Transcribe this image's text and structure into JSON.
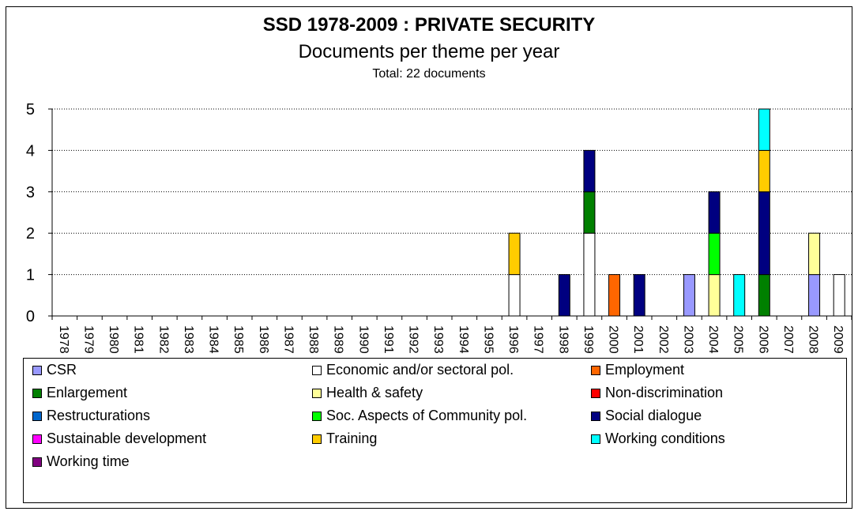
{
  "chart_data": {
    "type": "bar",
    "stacked": true,
    "title": "SSD 1978-2009 :  PRIVATE SECURITY",
    "subtitle": "Documents per theme per year",
    "note": "Total: 22 documents",
    "categories": [
      "1978",
      "1979",
      "1980",
      "1981",
      "1982",
      "1983",
      "1984",
      "1985",
      "1986",
      "1987",
      "1988",
      "1989",
      "1990",
      "1991",
      "1992",
      "1993",
      "1994",
      "1995",
      "1996",
      "1997",
      "1998",
      "1999",
      "2000",
      "2001",
      "2002",
      "2003",
      "2004",
      "2005",
      "2006",
      "2007",
      "2008",
      "2009"
    ],
    "ylim": [
      0,
      5
    ],
    "yticks": [
      "0",
      "1",
      "2",
      "3",
      "4",
      "5"
    ],
    "grid": true,
    "legend_position": "bottom",
    "series": [
      {
        "name": "CSR",
        "color": "#9999ff",
        "values": [
          0,
          0,
          0,
          0,
          0,
          0,
          0,
          0,
          0,
          0,
          0,
          0,
          0,
          0,
          0,
          0,
          0,
          0,
          0,
          0,
          0,
          0,
          0,
          0,
          0,
          1,
          0,
          0,
          0,
          0,
          1,
          0
        ]
      },
      {
        "name": "Economic and/or sectoral pol.",
        "color": "#ffffff",
        "values": [
          0,
          0,
          0,
          0,
          0,
          0,
          0,
          0,
          0,
          0,
          0,
          0,
          0,
          0,
          0,
          0,
          0,
          0,
          1,
          0,
          0,
          2,
          0,
          0,
          0,
          0,
          0,
          0,
          0,
          0,
          0,
          1
        ]
      },
      {
        "name": "Employment",
        "color": "#ff6600",
        "values": [
          0,
          0,
          0,
          0,
          0,
          0,
          0,
          0,
          0,
          0,
          0,
          0,
          0,
          0,
          0,
          0,
          0,
          0,
          0,
          0,
          0,
          0,
          1,
          0,
          0,
          0,
          0,
          0,
          0,
          0,
          0,
          0
        ]
      },
      {
        "name": "Enlargement",
        "color": "#008000",
        "values": [
          0,
          0,
          0,
          0,
          0,
          0,
          0,
          0,
          0,
          0,
          0,
          0,
          0,
          0,
          0,
          0,
          0,
          0,
          0,
          0,
          0,
          1,
          0,
          0,
          0,
          0,
          0,
          0,
          1,
          0,
          0,
          0
        ]
      },
      {
        "name": "Health & safety",
        "color": "#ffff99",
        "values": [
          0,
          0,
          0,
          0,
          0,
          0,
          0,
          0,
          0,
          0,
          0,
          0,
          0,
          0,
          0,
          0,
          0,
          0,
          0,
          0,
          0,
          0,
          0,
          0,
          0,
          0,
          1,
          0,
          0,
          0,
          1,
          0
        ]
      },
      {
        "name": "Non-discrimination",
        "color": "#ff0000",
        "values": [
          0,
          0,
          0,
          0,
          0,
          0,
          0,
          0,
          0,
          0,
          0,
          0,
          0,
          0,
          0,
          0,
          0,
          0,
          0,
          0,
          0,
          0,
          0,
          0,
          0,
          0,
          0,
          0,
          0,
          0,
          0,
          0
        ]
      },
      {
        "name": "Restructurations",
        "color": "#0066cc",
        "values": [
          0,
          0,
          0,
          0,
          0,
          0,
          0,
          0,
          0,
          0,
          0,
          0,
          0,
          0,
          0,
          0,
          0,
          0,
          0,
          0,
          0,
          0,
          0,
          0,
          0,
          0,
          0,
          0,
          0,
          0,
          0,
          0
        ]
      },
      {
        "name": "Soc. Aspects of Community pol.",
        "color": "#00ff00",
        "values": [
          0,
          0,
          0,
          0,
          0,
          0,
          0,
          0,
          0,
          0,
          0,
          0,
          0,
          0,
          0,
          0,
          0,
          0,
          0,
          0,
          0,
          0,
          0,
          0,
          0,
          0,
          1,
          0,
          0,
          0,
          0,
          0
        ]
      },
      {
        "name": "Social dialogue",
        "color": "#000080",
        "values": [
          0,
          0,
          0,
          0,
          0,
          0,
          0,
          0,
          0,
          0,
          0,
          0,
          0,
          0,
          0,
          0,
          0,
          0,
          0,
          0,
          1,
          1,
          0,
          1,
          0,
          0,
          1,
          0,
          2,
          0,
          0,
          0
        ]
      },
      {
        "name": "Sustainable development",
        "color": "#ff00ff",
        "values": [
          0,
          0,
          0,
          0,
          0,
          0,
          0,
          0,
          0,
          0,
          0,
          0,
          0,
          0,
          0,
          0,
          0,
          0,
          0,
          0,
          0,
          0,
          0,
          0,
          0,
          0,
          0,
          0,
          0,
          0,
          0,
          0
        ]
      },
      {
        "name": "Training",
        "color": "#ffcc00",
        "values": [
          0,
          0,
          0,
          0,
          0,
          0,
          0,
          0,
          0,
          0,
          0,
          0,
          0,
          0,
          0,
          0,
          0,
          0,
          1,
          0,
          0,
          0,
          0,
          0,
          0,
          0,
          0,
          0,
          1,
          0,
          0,
          0
        ]
      },
      {
        "name": "Working conditions",
        "color": "#00ffff",
        "values": [
          0,
          0,
          0,
          0,
          0,
          0,
          0,
          0,
          0,
          0,
          0,
          0,
          0,
          0,
          0,
          0,
          0,
          0,
          0,
          0,
          0,
          0,
          0,
          0,
          0,
          0,
          0,
          1,
          1,
          0,
          0,
          0
        ]
      },
      {
        "name": "Working time",
        "color": "#800080",
        "values": [
          0,
          0,
          0,
          0,
          0,
          0,
          0,
          0,
          0,
          0,
          0,
          0,
          0,
          0,
          0,
          0,
          0,
          0,
          0,
          0,
          0,
          0,
          0,
          0,
          0,
          0,
          0,
          0,
          0,
          0,
          0,
          0
        ]
      }
    ]
  }
}
